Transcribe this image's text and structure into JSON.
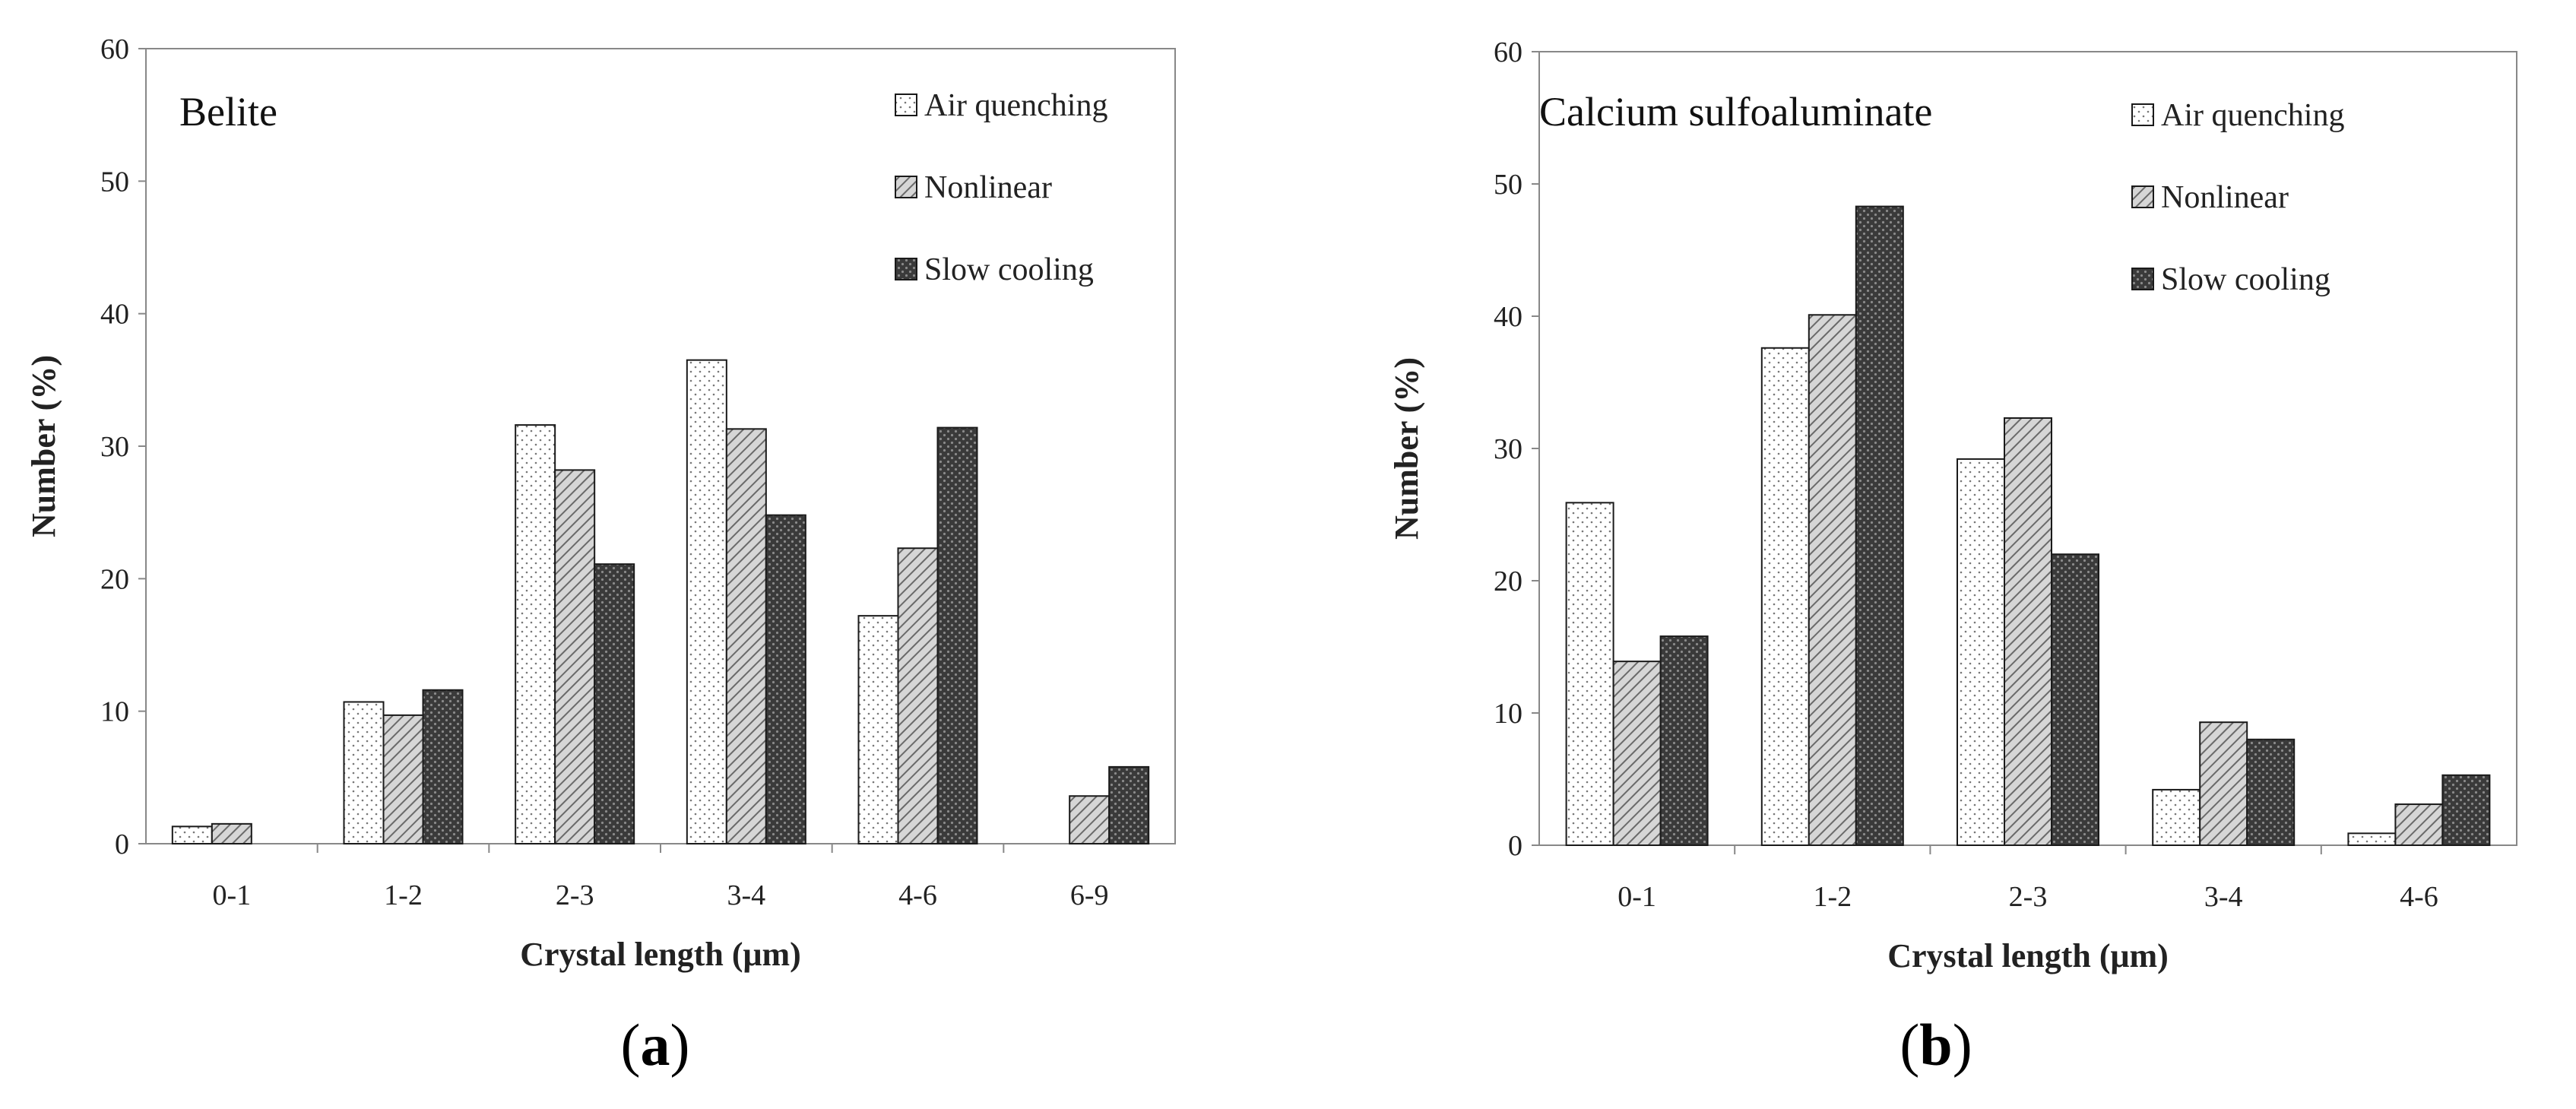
{
  "chart_data": [
    {
      "type": "bar",
      "panel_label": "a",
      "title": "Belite",
      "categories": [
        "0-1",
        "1-2",
        "2-3",
        "3-4",
        "4-6",
        "6-9"
      ],
      "series": [
        {
          "name": "Air quenching",
          "values": [
            1.3,
            10.7,
            31.6,
            36.5,
            17.2,
            0.0
          ]
        },
        {
          "name": "Nonlinear",
          "values": [
            1.5,
            9.7,
            28.2,
            31.3,
            22.3,
            3.6
          ]
        },
        {
          "name": "Slow cooling",
          "values": [
            0.0,
            11.6,
            21.1,
            24.8,
            31.4,
            5.8
          ]
        }
      ],
      "xlabel": "Crystal length (μm)",
      "ylabel": "Number (%)",
      "ylim": [
        0,
        60
      ],
      "yticks": [
        "0",
        "10",
        "20",
        "30",
        "40",
        "50",
        "60"
      ],
      "grid": false,
      "legend_position": "top-right"
    },
    {
      "type": "bar",
      "panel_label": "b",
      "title": "Calcium sulfoaluminate",
      "categories": [
        "0-1",
        "1-2",
        "2-3",
        "3-4",
        "4-6"
      ],
      "series": [
        {
          "name": "Air quenching",
          "values": [
            25.9,
            37.6,
            29.2,
            4.2,
            0.9
          ]
        },
        {
          "name": "Nonlinear",
          "values": [
            13.9,
            40.1,
            32.3,
            9.3,
            3.1
          ]
        },
        {
          "name": "Slow cooling",
          "values": [
            15.8,
            48.3,
            22.0,
            8.0,
            5.3
          ]
        }
      ],
      "xlabel": "Crystal length (μm)",
      "ylabel": "Number (%)",
      "ylim": [
        0,
        60
      ],
      "yticks": [
        "0",
        "10",
        "20",
        "30",
        "40",
        "50",
        "60"
      ],
      "grid": false,
      "legend_position": "top-right"
    }
  ],
  "colors": {
    "axis": "#888888",
    "text": "#222222",
    "air_fill": "#ffffff",
    "nonlinear_fill": "#c8c8c8",
    "slow_fill": "#4a4a4a",
    "bar_edge": "#1a1a1a"
  }
}
